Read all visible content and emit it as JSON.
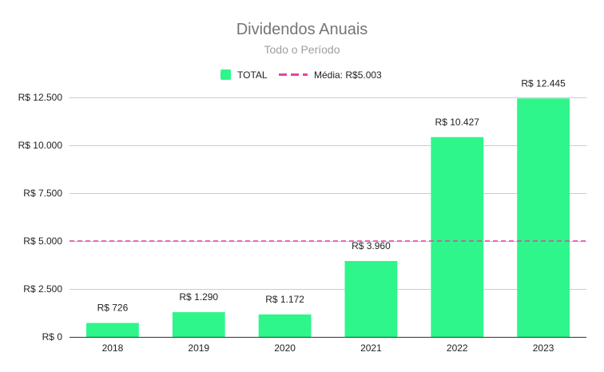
{
  "chart_data": {
    "type": "bar",
    "title": "Dividendos Anuais",
    "subtitle": "Todo o Período",
    "xlabel": "",
    "ylabel": "",
    "categories": [
      "2018",
      "2019",
      "2020",
      "2021",
      "2022",
      "2023"
    ],
    "series": [
      {
        "name": "TOTAL",
        "values": [
          726,
          1290,
          1172,
          3960,
          10427,
          12445
        ],
        "labels": [
          "R$ 726",
          "R$ 1.290",
          "R$ 1.172",
          "R$ 3.960",
          "R$ 10.427",
          "R$ 12.445"
        ],
        "color": "#2ef68b"
      }
    ],
    "reference_line": {
      "label": "Média: R$5.003",
      "value": 5003,
      "color": "#e8449c",
      "style": "dashed"
    },
    "ylim": [
      0,
      12500
    ],
    "yticks": [
      0,
      2500,
      5000,
      7500,
      10000,
      12500
    ],
    "ytick_labels": [
      "R$ 0",
      "R$ 2.500",
      "R$ 5.000",
      "R$ 7.500",
      "R$ 10.000",
      "R$ 12.500"
    ],
    "grid": true,
    "legend_position": "top-center"
  }
}
